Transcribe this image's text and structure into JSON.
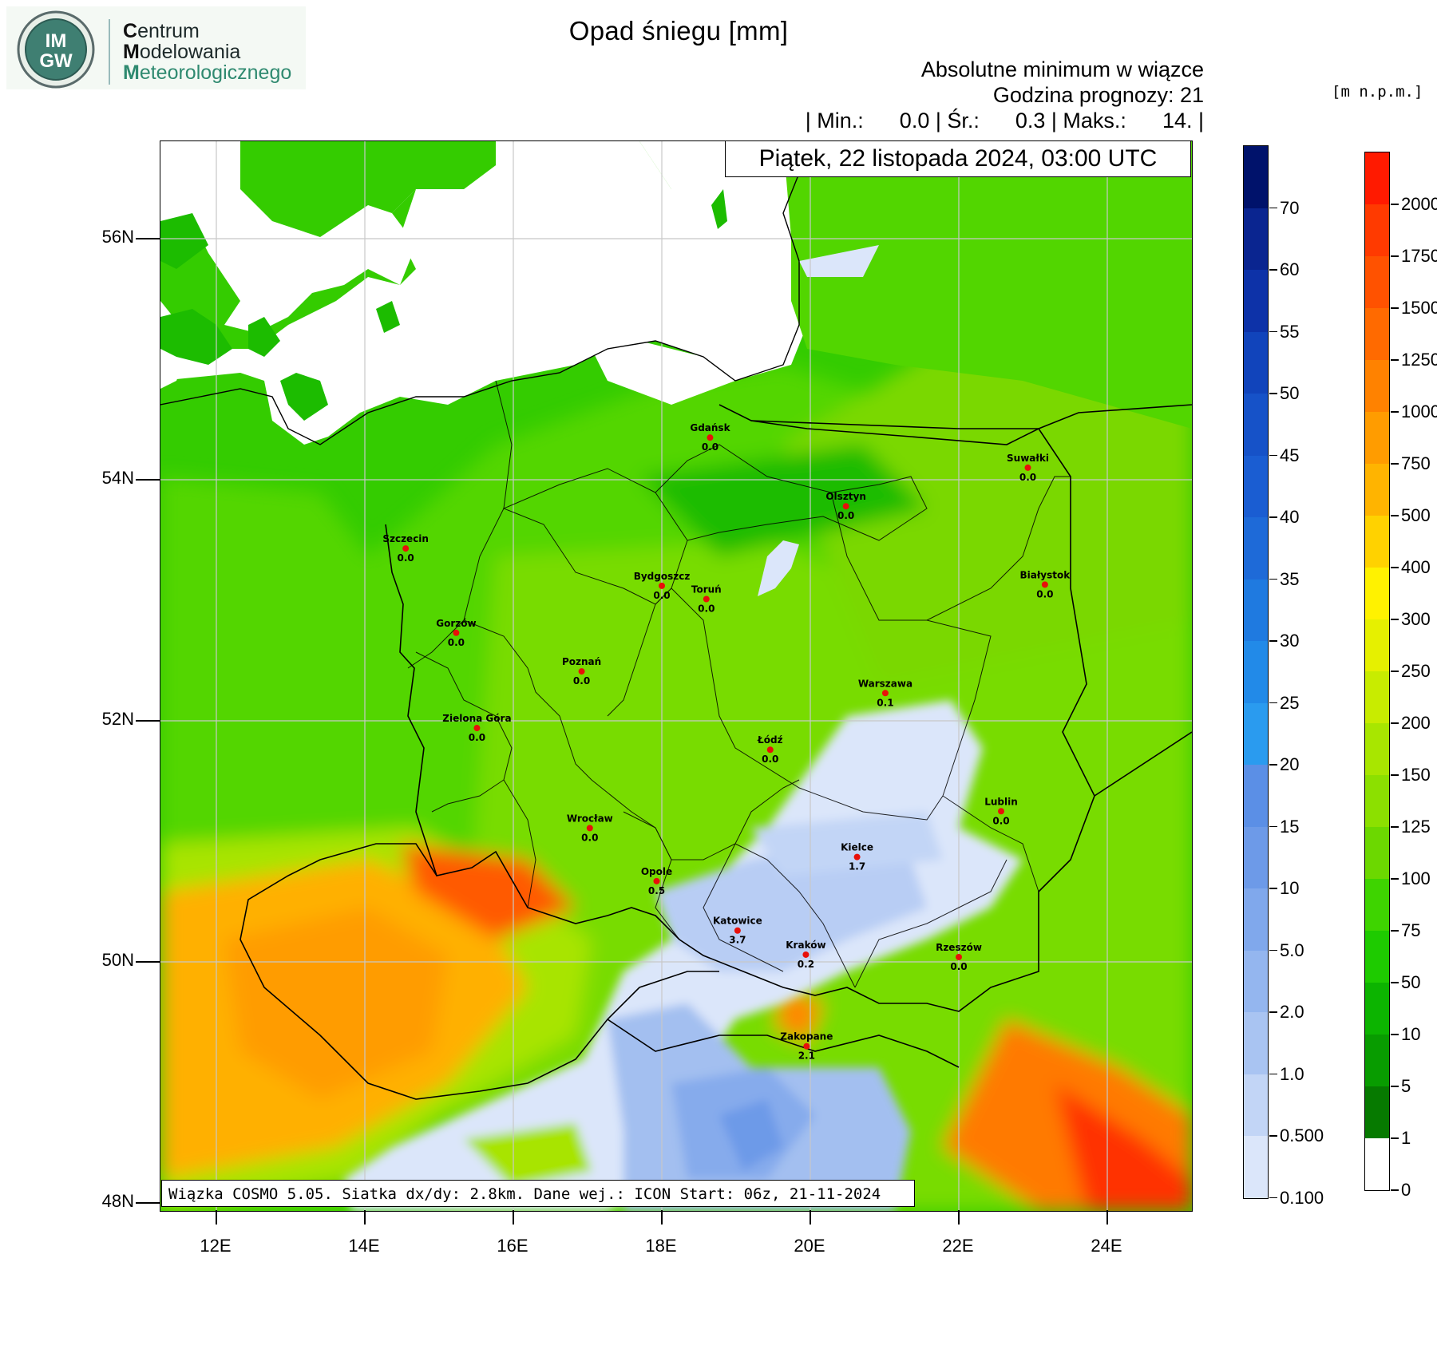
{
  "logo": {
    "abbr_top": "IM",
    "abbr_bottom": "GW",
    "lines": [
      {
        "initial": "C",
        "rest": "entrum"
      },
      {
        "initial": "M",
        "rest": "odelowania"
      },
      {
        "initial": "M",
        "rest": "eteorologicznego"
      }
    ]
  },
  "title": "Opad śniegu [mm]",
  "subtitle": "Absolutne minimum w wiązce",
  "forecast_hour": "Godzina prognozy: 21",
  "stats": "| Min.:      0.0 | Śr.:      0.3 | Maks.:      14. |",
  "date": "Piątek, 22 listopada 2024, 03:00 UTC",
  "footer": "Wiązka COSMO 5.05. Siatka dx/dy: 2.8km. Dane wej.: ICON Start: 06z, 21-11-2024",
  "elevation_units": "[m n.p.m.]",
  "lat_labels": [
    "56N",
    "54N",
    "52N",
    "50N",
    "48N"
  ],
  "lon_labels": [
    "12E",
    "14E",
    "16E",
    "18E",
    "20E",
    "22E",
    "24E"
  ],
  "snow_scale": {
    "labels": [
      "70",
      "60",
      "55",
      "50",
      "45",
      "40",
      "35",
      "30",
      "25",
      "20",
      "15",
      "10",
      "5.0",
      "2.0",
      "1.0",
      "0.500",
      "0.100"
    ],
    "colors": [
      "#00126b",
      "#0a2590",
      "#0d32a8",
      "#1144bb",
      "#1652c8",
      "#1a5dd2",
      "#1e6ad8",
      "#1f7ae0",
      "#228ae8",
      "#2a9bef",
      "#5b8fe6",
      "#6d9ae8",
      "#80a8ec",
      "#94b6ef",
      "#a9c4f2",
      "#c2d5f6",
      "#dbe6fa"
    ]
  },
  "elev_scale": {
    "labels": [
      "2000",
      "1750",
      "1500",
      "1250",
      "1000",
      "750",
      "500",
      "400",
      "300",
      "250",
      "200",
      "150",
      "125",
      "100",
      "75",
      "50",
      "10",
      "5",
      "1",
      "0"
    ],
    "colors": [
      "#ff1a00",
      "#ff3a00",
      "#ff5200",
      "#ff6a00",
      "#ff8200",
      "#ff9c00",
      "#ffb400",
      "#ffd200",
      "#fff200",
      "#e6f000",
      "#c8ec00",
      "#a8e600",
      "#8ce000",
      "#6cd800",
      "#3ed400",
      "#1ecb00",
      "#0cb400",
      "#089c00",
      "#067a00",
      "#ffffff"
    ]
  },
  "cities": [
    {
      "name": "Gdańsk",
      "value": "0.0",
      "lon": 18.65,
      "lat": 54.35
    },
    {
      "name": "Suwałki",
      "value": "0.0",
      "lon": 22.93,
      "lat": 54.1
    },
    {
      "name": "Olsztyn",
      "value": "0.0",
      "lon": 20.48,
      "lat": 53.78
    },
    {
      "name": "Szczecin",
      "value": "0.0",
      "lon": 14.55,
      "lat": 53.43
    },
    {
      "name": "Bydgoszcz",
      "value": "0.0",
      "lon": 18.0,
      "lat": 53.12
    },
    {
      "name": "Toruń",
      "value": "0.0",
      "lon": 18.6,
      "lat": 53.01
    },
    {
      "name": "Białystok",
      "value": "0.0",
      "lon": 23.16,
      "lat": 53.13
    },
    {
      "name": "Gorzów",
      "value": "0.0",
      "lon": 15.23,
      "lat": 52.73
    },
    {
      "name": "Poznań",
      "value": "0.0",
      "lon": 16.92,
      "lat": 52.41
    },
    {
      "name": "Warszawa",
      "value": "0.1",
      "lon": 21.01,
      "lat": 52.23
    },
    {
      "name": "Zielona Góra",
      "value": "0.0",
      "lon": 15.51,
      "lat": 51.94
    },
    {
      "name": "Łódź",
      "value": "0.0",
      "lon": 19.46,
      "lat": 51.76
    },
    {
      "name": "Lublin",
      "value": "0.0",
      "lon": 22.57,
      "lat": 51.25
    },
    {
      "name": "Wrocław",
      "value": "0.0",
      "lon": 17.03,
      "lat": 51.11
    },
    {
      "name": "Kielce",
      "value": "1.7",
      "lon": 20.63,
      "lat": 50.87
    },
    {
      "name": "Opole",
      "value": "0.5",
      "lon": 17.93,
      "lat": 50.67
    },
    {
      "name": "Katowice",
      "value": "3.7",
      "lon": 19.02,
      "lat": 50.26
    },
    {
      "name": "Kraków",
      "value": "0.2",
      "lon": 19.94,
      "lat": 50.06
    },
    {
      "name": "Rzeszów",
      "value": "0.0",
      "lon": 22.0,
      "lat": 50.04
    },
    {
      "name": "Zakopane",
      "value": "2.1",
      "lon": 19.95,
      "lat": 49.3
    }
  ]
}
